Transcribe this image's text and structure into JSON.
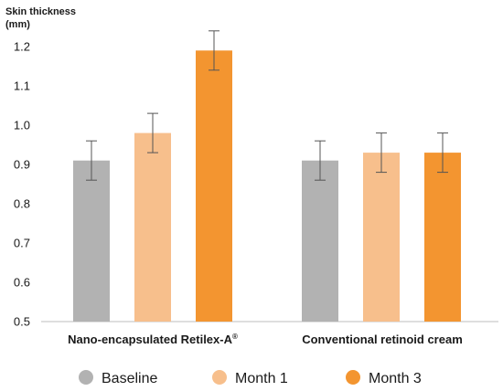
{
  "chart_data": {
    "type": "bar",
    "ylabel_lines": [
      "Skin thickness",
      "(mm)"
    ],
    "ylim": [
      0.5,
      1.2
    ],
    "yticks": [
      "0.5",
      "0.6",
      "0.7",
      "0.8",
      "0.9",
      "1.0",
      "1.1",
      "1.2"
    ],
    "categories": [
      "Nano-encapsulated Retilex-A",
      "Conventional retinoid cream"
    ],
    "category_superscripts": [
      "®",
      ""
    ],
    "series": [
      {
        "name": "Baseline",
        "color": "#b2b2b2",
        "values": [
          0.91,
          0.91
        ],
        "error": [
          0.05,
          0.05
        ]
      },
      {
        "name": "Month 1",
        "color": "#f7bf8c",
        "values": [
          0.98,
          0.93
        ],
        "error": [
          0.05,
          0.05
        ]
      },
      {
        "name": "Month 3",
        "color": "#f39530",
        "values": [
          1.19,
          0.93
        ],
        "error": [
          0.05,
          0.05
        ]
      }
    ],
    "grid": false,
    "legend_position": "bottom"
  }
}
